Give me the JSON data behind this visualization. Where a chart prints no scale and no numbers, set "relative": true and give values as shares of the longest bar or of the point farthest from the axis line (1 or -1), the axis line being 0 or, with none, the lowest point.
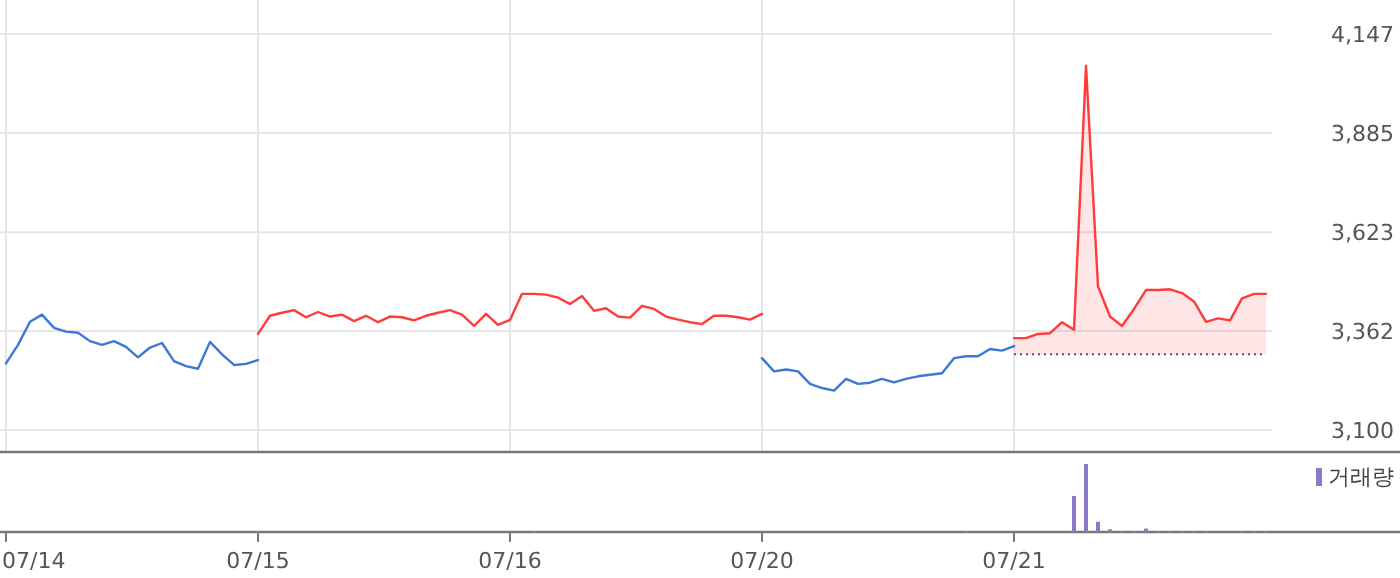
{
  "chart_data": [
    {
      "type": "line",
      "tick_labels": "y",
      "grid": true,
      "legend": false,
      "categories": [
        null,
        null,
        null,
        null,
        null,
        null,
        null,
        null,
        null,
        null,
        null,
        null,
        null,
        null,
        null,
        null,
        null,
        null,
        null,
        null,
        null,
        null,
        null,
        null,
        null,
        null,
        null,
        null,
        null,
        null,
        null,
        null,
        null,
        null,
        null,
        null,
        null,
        null,
        null,
        null,
        null,
        null,
        null,
        null,
        null,
        null,
        null,
        null,
        null,
        null,
        null,
        null,
        null,
        null,
        null,
        null,
        null,
        null,
        null,
        null,
        null,
        null,
        null,
        null,
        null,
        null,
        null,
        null,
        null,
        null,
        null,
        null,
        null,
        null,
        null,
        null,
        null,
        null,
        null,
        null,
        null,
        null,
        null,
        null,
        null,
        null,
        null,
        null,
        null,
        null,
        null,
        null,
        null,
        null,
        null,
        null,
        null,
        null,
        null,
        null,
        null,
        null,
        null,
        null,
        null,
        null
      ],
      "ylim": [
        3100,
        4147
      ],
      "yticks": [
        {
          "value": 3100,
          "label": "3,100"
        },
        {
          "value": 3362,
          "label": "3,362"
        },
        {
          "value": 3623,
          "label": "3,623"
        },
        {
          "value": 3885,
          "label": "3,885"
        },
        {
          "value": 4147,
          "label": "4,147"
        }
      ],
      "ref_lines": [
        {
          "axis": "y",
          "value": 3300,
          "color": "#555555",
          "line_style": "dotted"
        }
      ],
      "series": [
        {
          "color": "#3b78d8",
          "values": [
            3276,
            3325,
            3386,
            3405,
            3370,
            3360,
            3357,
            3335,
            3325,
            3335,
            3320,
            3292,
            3318,
            3330,
            3282,
            3269,
            3262,
            3333,
            3300,
            3272,
            3275,
            3285,
            null,
            null,
            null,
            null,
            null,
            null,
            null,
            null,
            null,
            null,
            null,
            null,
            null,
            null,
            null,
            null,
            null,
            null,
            null,
            null,
            null,
            null,
            null,
            null,
            null,
            null,
            null,
            null,
            null,
            null,
            null,
            null,
            null,
            null,
            null,
            null,
            null,
            null,
            null,
            null,
            null,
            3290,
            3255,
            3260,
            3255,
            3222,
            3211,
            3204,
            3235,
            3222,
            3225,
            3235,
            3226,
            3235,
            3242,
            3246,
            3250,
            3290,
            3295,
            3295,
            3314,
            3310,
            3322,
            null,
            null,
            null,
            null,
            null,
            null,
            null,
            null,
            null,
            null,
            null,
            null,
            null,
            null,
            null,
            null,
            null,
            null,
            null,
            null,
            null
          ]
        },
        {
          "color": "#ff3b3b",
          "values": [
            null,
            null,
            null,
            null,
            null,
            null,
            null,
            null,
            null,
            null,
            null,
            null,
            null,
            null,
            null,
            null,
            null,
            null,
            null,
            null,
            null,
            3354,
            3402,
            3410,
            3417,
            3398,
            3412,
            3400,
            3405,
            3388,
            3402,
            3385,
            3400,
            3398,
            3390,
            3402,
            3410,
            3417,
            3405,
            3375,
            3407,
            3378,
            3391,
            3460,
            3460,
            3458,
            3450,
            3433,
            3454,
            3415,
            3422,
            3400,
            3397,
            3428,
            3420,
            3400,
            3392,
            3385,
            3380,
            3402,
            3402,
            3398,
            3392,
            3407,
            null,
            null,
            null,
            null,
            null,
            null,
            null,
            null,
            null,
            null,
            null,
            null,
            null,
            null,
            null,
            null,
            null,
            null,
            null,
            null,
            null,
            null,
            null,
            null,
            null,
            null,
            null,
            null,
            null,
            null,
            null,
            null,
            null,
            null,
            null,
            null,
            null,
            null,
            null,
            null,
            null,
            null
          ]
        },
        {
          "type": "area",
          "color": "#ff3b3b",
          "values": [
            null,
            null,
            null,
            null,
            null,
            null,
            null,
            null,
            null,
            null,
            null,
            null,
            null,
            null,
            null,
            null,
            null,
            null,
            null,
            null,
            null,
            null,
            null,
            null,
            null,
            null,
            null,
            null,
            null,
            null,
            null,
            null,
            null,
            null,
            null,
            null,
            null,
            null,
            null,
            null,
            null,
            null,
            null,
            null,
            null,
            null,
            null,
            null,
            null,
            null,
            null,
            null,
            null,
            null,
            null,
            null,
            null,
            null,
            null,
            null,
            null,
            null,
            null,
            null,
            null,
            null,
            null,
            null,
            null,
            null,
            null,
            null,
            null,
            null,
            null,
            null,
            null,
            null,
            null,
            null,
            null,
            null,
            null,
            null,
            3343,
            3343,
            3354,
            3356,
            3385,
            3365,
            4063,
            3480,
            3400,
            3375,
            3420,
            3470,
            3470,
            3472,
            3462,
            3440,
            3386,
            3395,
            3390,
            3448,
            3460,
            3460
          ]
        }
      ]
    },
    {
      "type": "bar",
      "relative": true,
      "tick_labels": "x",
      "legend": "top right",
      "categories": [
        "07/14",
        null,
        null,
        null,
        null,
        null,
        null,
        null,
        null,
        null,
        null,
        null,
        null,
        null,
        null,
        null,
        null,
        null,
        null,
        null,
        null,
        "07/15",
        null,
        null,
        null,
        null,
        null,
        null,
        null,
        null,
        null,
        null,
        null,
        null,
        null,
        null,
        null,
        null,
        null,
        null,
        null,
        null,
        "07/16",
        null,
        null,
        null,
        null,
        null,
        null,
        null,
        null,
        null,
        null,
        null,
        null,
        null,
        null,
        null,
        null,
        null,
        null,
        null,
        null,
        "07/20",
        null,
        null,
        null,
        null,
        null,
        null,
        null,
        null,
        null,
        null,
        null,
        null,
        null,
        null,
        null,
        null,
        null,
        null,
        null,
        null,
        "07/21",
        null,
        null,
        null,
        null,
        null,
        null,
        null,
        null,
        null,
        null,
        null,
        null,
        null,
        null,
        null,
        null,
        null,
        null,
        null,
        null,
        null
      ],
      "series": [
        {
          "name": "거래량",
          "color": "#8b78c8",
          "values": [
            null,
            null,
            null,
            null,
            null,
            null,
            null,
            null,
            null,
            null,
            null,
            null,
            null,
            null,
            null,
            null,
            null,
            null,
            null,
            null,
            null,
            0.01,
            null,
            null,
            null,
            null,
            null,
            null,
            null,
            null,
            null,
            null,
            null,
            null,
            null,
            null,
            null,
            null,
            null,
            null,
            null,
            null,
            null,
            null,
            0.01,
            null,
            null,
            null,
            null,
            null,
            null,
            null,
            null,
            null,
            null,
            null,
            null,
            null,
            null,
            null,
            null,
            null,
            null,
            null,
            null,
            null,
            null,
            null,
            null,
            null,
            null,
            null,
            null,
            null,
            null,
            null,
            null,
            null,
            null,
            null,
            0.01,
            null,
            null,
            null,
            null,
            null,
            null,
            null,
            null,
            0.53,
            1,
            0.15,
            0.04,
            0.01,
            0.01,
            0.05,
            0.01,
            0.01,
            0.01,
            0.01,
            0.01,
            null,
            null,
            0.01,
            0.01,
            0.01
          ]
        }
      ]
    }
  ]
}
